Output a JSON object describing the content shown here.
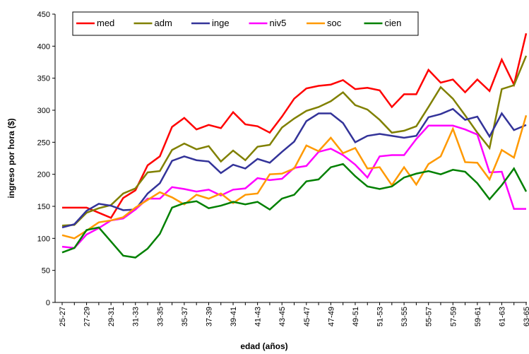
{
  "chart_data": {
    "type": "line",
    "x_label": "edad (años)",
    "y_label": "ingreso por hora ($)",
    "categories": [
      "25-27",
      null,
      "27-29",
      null,
      "29-31",
      null,
      "31-33",
      null,
      "33-35",
      null,
      "35-37",
      null,
      "37-39",
      null,
      "39-41",
      null,
      "41-43",
      null,
      "43-45",
      null,
      "45-47",
      null,
      "47-49",
      null,
      "49-51",
      null,
      "51-53",
      null,
      "53-55",
      null,
      "55-57",
      null,
      "57-59",
      null,
      "59-61",
      null,
      "61-63",
      null,
      "63-65"
    ],
    "ylim": [
      0,
      450
    ],
    "yticks": [
      0,
      50,
      100,
      150,
      200,
      250,
      300,
      350,
      400,
      450
    ],
    "legend": "top",
    "series": [
      {
        "name": "med",
        "color": "#ff0000",
        "values": [
          148,
          148,
          148,
          140,
          132,
          163,
          175,
          214,
          228,
          274,
          288,
          270,
          277,
          272,
          297,
          278,
          275,
          265,
          290,
          318,
          334,
          338,
          340,
          347,
          333,
          335,
          331,
          305,
          325,
          325,
          363,
          343,
          348,
          328,
          348,
          330,
          379,
          340,
          420
        ]
      },
      {
        "name": "adm",
        "color": "#808000",
        "values": [
          120,
          121,
          140,
          147,
          152,
          170,
          178,
          203,
          205,
          238,
          248,
          239,
          244,
          220,
          237,
          222,
          243,
          246,
          273,
          287,
          299,
          305,
          314,
          328,
          308,
          301,
          285,
          265,
          268,
          275,
          305,
          336,
          318,
          292,
          265,
          241,
          333,
          339,
          385
        ]
      },
      {
        "name": "inge",
        "color": "#333399",
        "values": [
          117,
          122,
          143,
          154,
          151,
          144,
          145,
          170,
          186,
          221,
          228,
          222,
          220,
          202,
          215,
          209,
          224,
          218,
          235,
          251,
          283,
          295,
          295,
          280,
          250,
          260,
          263,
          260,
          257,
          260,
          289,
          294,
          302,
          285,
          290,
          259,
          295,
          269,
          277
        ]
      },
      {
        "name": "niv5",
        "color": "#ff00ff",
        "values": [
          87,
          85,
          106,
          116,
          128,
          131,
          145,
          162,
          162,
          180,
          177,
          173,
          176,
          167,
          176,
          178,
          194,
          191,
          193,
          210,
          213,
          235,
          240,
          230,
          215,
          195,
          228,
          230,
          230,
          255,
          276,
          276,
          276,
          270,
          262,
          203,
          204,
          146,
          146
        ]
      },
      {
        "name": "soc",
        "color": "#ff9900",
        "values": [
          105,
          100,
          112,
          125,
          128,
          133,
          148,
          160,
          172,
          164,
          153,
          168,
          162,
          170,
          155,
          168,
          170,
          200,
          201,
          209,
          245,
          236,
          257,
          233,
          241,
          209,
          211,
          183,
          211,
          184,
          216,
          228,
          271,
          219,
          218,
          192,
          238,
          226,
          292
        ]
      },
      {
        "name": "cien",
        "color": "#008000",
        "values": [
          78,
          85,
          113,
          117,
          95,
          73,
          70,
          84,
          107,
          148,
          155,
          158,
          147,
          151,
          157,
          153,
          157,
          145,
          162,
          168,
          189,
          192,
          211,
          216,
          197,
          181,
          177,
          181,
          195,
          201,
          205,
          200,
          207,
          204,
          186,
          161,
          183,
          209,
          173
        ]
      }
    ]
  }
}
